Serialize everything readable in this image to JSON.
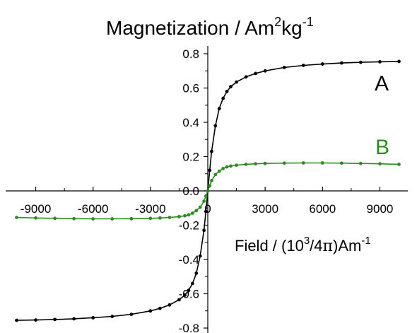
{
  "chart_data": {
    "type": "line",
    "title": {
      "text": "Magnetization / Am",
      "sup1": "2",
      "mid": "kg",
      "sup2": "-1"
    },
    "xlabel": {
      "pre": "Field / (10",
      "sup1": "3",
      "mid": "/4",
      "pi": "π",
      "post": ")Am",
      "sup2": "-1"
    },
    "xlim": [
      -10000,
      10000
    ],
    "ylim": [
      -0.8,
      0.8
    ],
    "x_ticks": [
      -9000,
      -6000,
      -3000,
      0,
      3000,
      6000,
      9000
    ],
    "x_tick_labels": [
      "-9000",
      "-6000",
      "-3000",
      "0",
      "3000",
      "6000",
      "9000"
    ],
    "y_ticks": [
      -0.8,
      -0.6,
      -0.4,
      -0.2,
      0.0,
      0.2,
      0.4,
      0.6,
      0.8
    ],
    "y_tick_labels": [
      "-0.8",
      "-0.6",
      "-0.4",
      "-0.2",
      "0.0",
      "0.2",
      "0.4",
      "0.6",
      "0.8"
    ],
    "grid": false,
    "series": [
      {
        "name": "A",
        "color": "#000000",
        "x": [
          -10000,
          -9000,
          -8000,
          -7000,
          -6000,
          -5000,
          -4000,
          -3000,
          -2500,
          -2000,
          -1500,
          -1200,
          -1000,
          -800,
          -600,
          -400,
          -200,
          -100,
          0,
          100,
          200,
          400,
          600,
          800,
          1000,
          1200,
          1500,
          2000,
          2500,
          3000,
          4000,
          5000,
          6000,
          7000,
          8000,
          9000,
          10000
        ],
        "y": [
          -0.755,
          -0.753,
          -0.75,
          -0.746,
          -0.74,
          -0.732,
          -0.72,
          -0.7,
          -0.685,
          -0.665,
          -0.635,
          -0.608,
          -0.58,
          -0.54,
          -0.48,
          -0.38,
          -0.23,
          -0.12,
          0.0,
          0.12,
          0.23,
          0.38,
          0.48,
          0.54,
          0.58,
          0.608,
          0.635,
          0.665,
          0.685,
          0.7,
          0.72,
          0.732,
          0.74,
          0.746,
          0.75,
          0.753,
          0.755
        ]
      },
      {
        "name": "B",
        "color": "#2e8b22",
        "x": [
          -10000,
          -9000,
          -8000,
          -7000,
          -6000,
          -5000,
          -4000,
          -3000,
          -2500,
          -2000,
          -1500,
          -1200,
          -1000,
          -800,
          -600,
          -400,
          -200,
          -100,
          0,
          100,
          200,
          400,
          600,
          800,
          1000,
          1200,
          1500,
          2000,
          2500,
          3000,
          4000,
          5000,
          6000,
          7000,
          8000,
          9000,
          10000
        ],
        "y": [
          -0.155,
          -0.158,
          -0.16,
          -0.162,
          -0.163,
          -0.163,
          -0.162,
          -0.16,
          -0.158,
          -0.155,
          -0.15,
          -0.145,
          -0.14,
          -0.13,
          -0.115,
          -0.095,
          -0.06,
          -0.03,
          0.0,
          0.03,
          0.06,
          0.095,
          0.115,
          0.13,
          0.14,
          0.145,
          0.15,
          0.155,
          0.158,
          0.16,
          0.162,
          0.163,
          0.163,
          0.162,
          0.16,
          0.158,
          0.155
        ]
      }
    ],
    "series_labels": [
      {
        "text": "A",
        "color": "#000000"
      },
      {
        "text": "B",
        "color": "#2e8b22"
      }
    ]
  }
}
